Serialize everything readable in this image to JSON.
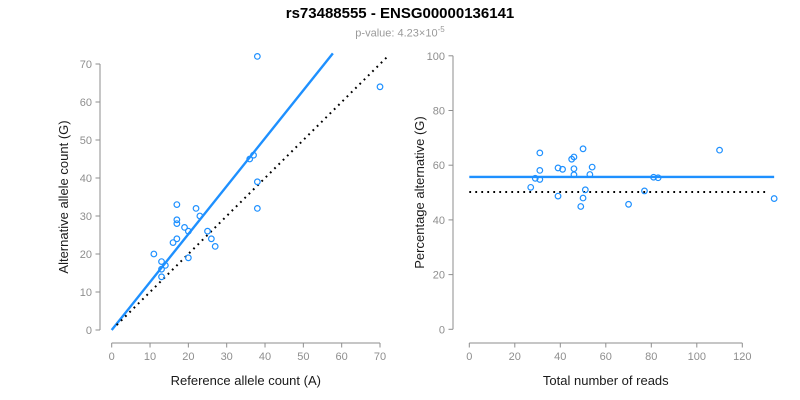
{
  "header": {
    "title": "rs73488555 - ENSG00000136141",
    "subtitle_base": "p-value: 4.23×10",
    "subtitle_exponent": "-5"
  },
  "colors": {
    "accent_blue": "#1E90FF",
    "dotted_black": "#000000",
    "axis_gray": "#8e8e8e",
    "axis_title_dark": "#1a1a1a",
    "subtitle_gray": "#9a9a9a"
  },
  "chart_data": [
    {
      "type": "scatter",
      "title": "",
      "xlabel": "Reference allele count (A)",
      "ylabel": "Alternative allele count (G)",
      "xlim": [
        0,
        70
      ],
      "ylim": [
        0,
        72.5
      ],
      "grid": false,
      "legend": "none",
      "xticks": [
        0,
        10,
        20,
        30,
        40,
        50,
        60,
        70
      ],
      "yticks": [
        0,
        10,
        20,
        30,
        40,
        50,
        60,
        70
      ],
      "points": [
        [
          38,
          72
        ],
        [
          70,
          64
        ],
        [
          17,
          33
        ],
        [
          22,
          32
        ],
        [
          23,
          30
        ],
        [
          17,
          29
        ],
        [
          17,
          28
        ],
        [
          19,
          27
        ],
        [
          20,
          26
        ],
        [
          25,
          26
        ],
        [
          26,
          24
        ],
        [
          16,
          23
        ],
        [
          17,
          24
        ],
        [
          27,
          22
        ],
        [
          11,
          20
        ],
        [
          20,
          19
        ],
        [
          13,
          18
        ],
        [
          14,
          17
        ],
        [
          13,
          16
        ],
        [
          13,
          14
        ],
        [
          38,
          39
        ],
        [
          38,
          32
        ],
        [
          37,
          46
        ],
        [
          36,
          45
        ]
      ],
      "lines": [
        {
          "name": "regression-line",
          "x1": 0,
          "y1": 0,
          "x2": 57.7,
          "y2": 72.8,
          "style": "solid",
          "color": "#1E90FF"
        },
        {
          "name": "identity-line",
          "x1": 1.3,
          "y1": 1.3,
          "x2": 72,
          "y2": 72,
          "style": "dotted",
          "color": "#000000"
        }
      ]
    },
    {
      "type": "scatter",
      "title": "",
      "xlabel": "Total number of reads",
      "ylabel": "Percentage alternative (G)",
      "xlim": [
        0,
        134
      ],
      "ylim": [
        0,
        100
      ],
      "grid": false,
      "legend": "none",
      "xticks": [
        0,
        20,
        40,
        60,
        80,
        100,
        120
      ],
      "yticks": [
        0,
        20,
        40,
        60,
        80,
        100
      ],
      "points": [
        [
          110,
          65.5
        ],
        [
          134,
          47.8
        ],
        [
          50,
          66
        ],
        [
          54,
          59.3
        ],
        [
          53,
          56.6
        ],
        [
          46,
          63
        ],
        [
          45,
          62.2
        ],
        [
          46,
          58.7
        ],
        [
          46,
          56.5
        ],
        [
          51,
          51
        ],
        [
          50,
          48
        ],
        [
          39,
          59
        ],
        [
          41,
          58.5
        ],
        [
          49,
          44.9
        ],
        [
          31,
          64.5
        ],
        [
          39,
          48.7
        ],
        [
          31,
          58.1
        ],
        [
          31,
          54.8
        ],
        [
          29,
          55.2
        ],
        [
          27,
          51.9
        ],
        [
          77,
          50.6
        ],
        [
          70,
          45.7
        ],
        [
          83,
          55.4
        ],
        [
          81,
          55.6
        ]
      ],
      "lines": [
        {
          "name": "mean-percentage-line",
          "x1": 0,
          "y1": 55.7,
          "x2": 134,
          "y2": 55.7,
          "style": "solid",
          "color": "#1E90FF"
        },
        {
          "name": "fifty-percent-line",
          "x1": 0,
          "y1": 50.2,
          "x2": 131,
          "y2": 50.2,
          "style": "dotted",
          "color": "#000000"
        }
      ]
    }
  ]
}
